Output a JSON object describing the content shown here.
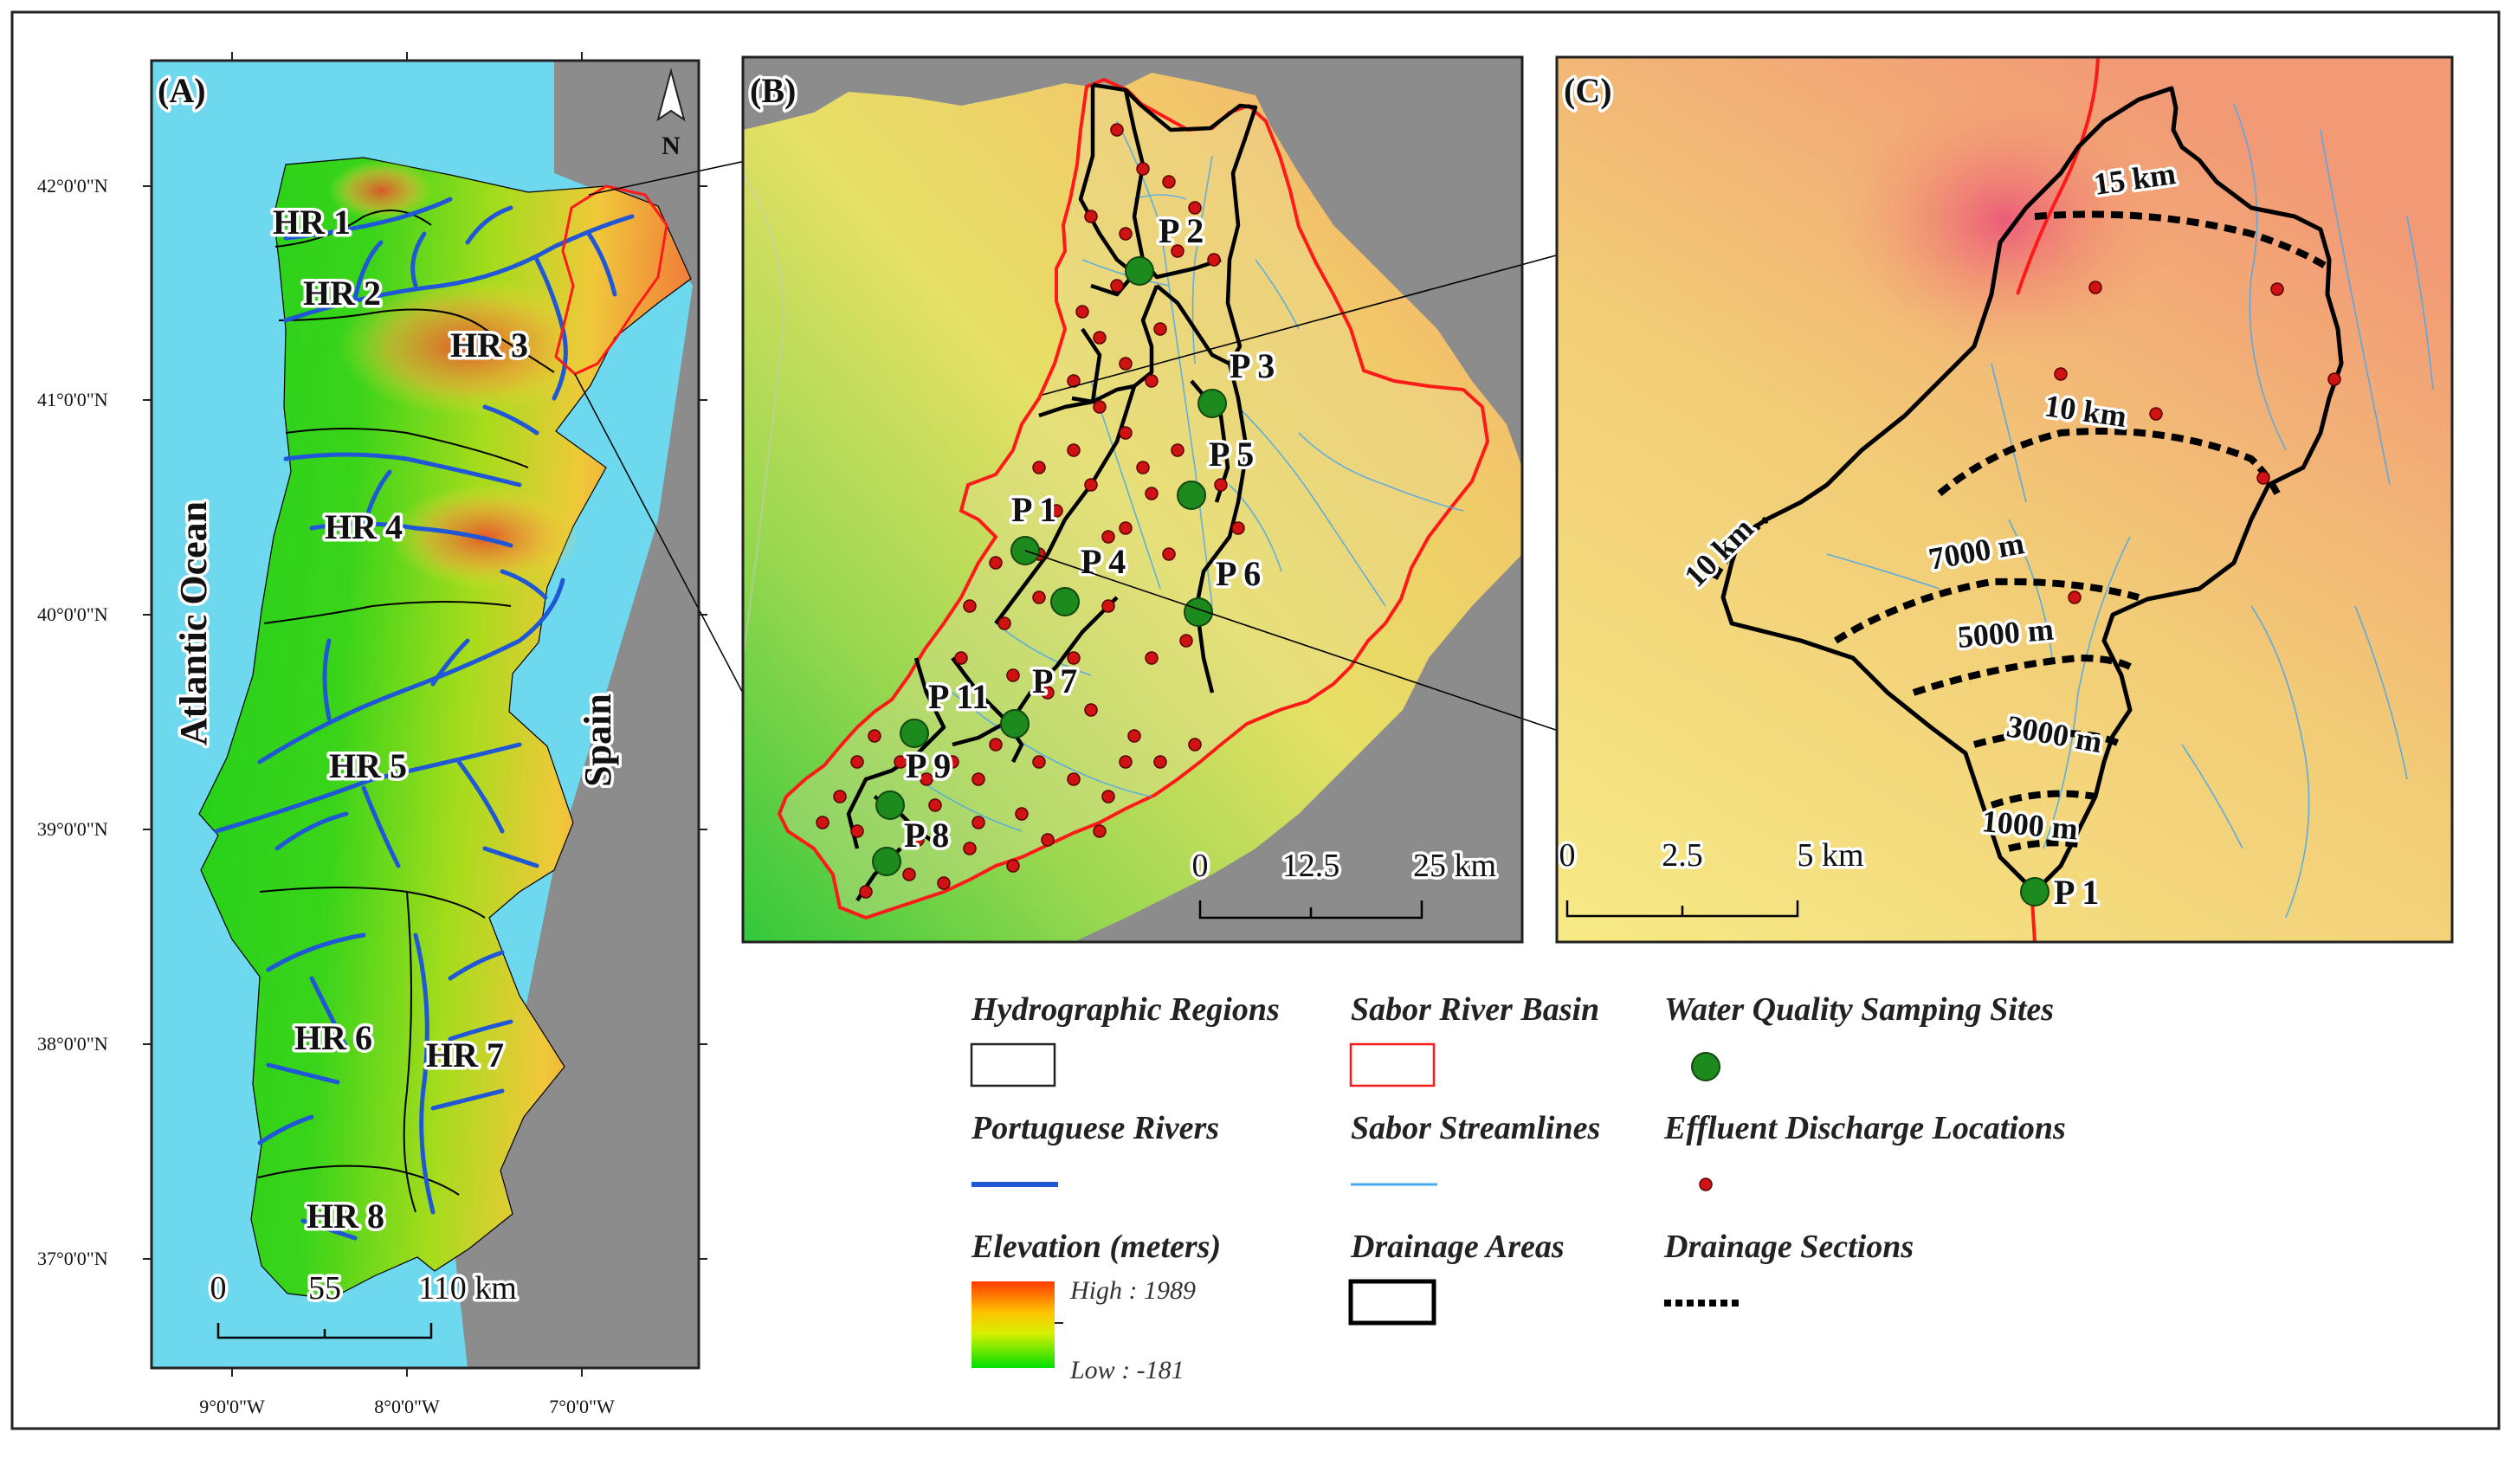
{
  "panels": {
    "a": {
      "label": "(A)",
      "ocean_label": "Atlantic Ocean",
      "country_label": "Spain",
      "regions": [
        "HR 1",
        "HR 2",
        "HR 3",
        "HR 4",
        "HR 5",
        "HR 6",
        "HR 7",
        "HR 8"
      ],
      "lat_ticks": [
        "42°0'0\"N",
        "41°0'0\"N",
        "40°0'0\"N",
        "39°0'0\"N",
        "38°0'0\"N",
        "37°0'0\"N"
      ],
      "lon_ticks": [
        "9°0'0\"W",
        "8°0'0\"W",
        "7°0'0\"W"
      ],
      "scale": {
        "ticks": [
          "0",
          "55",
          "110 km"
        ]
      },
      "north": "N"
    },
    "b": {
      "label": "(B)",
      "sites": [
        "P 1",
        "P 2",
        "P 3",
        "P 4",
        "P 5",
        "P 6",
        "P 7",
        "P 8",
        "P 9",
        "P 11"
      ],
      "scale": {
        "ticks": [
          "0",
          "12.5",
          "25 km"
        ]
      }
    },
    "c": {
      "label": "(C)",
      "sections": [
        "15 km",
        "10 km",
        "10 km",
        "7000 m",
        "5000 m",
        "3000 m",
        "1000 m"
      ],
      "site": "P 1",
      "scale": {
        "ticks": [
          "0",
          "2.5",
          "5 km"
        ]
      }
    }
  },
  "legend": {
    "hydrographic_regions": "Hydrographic Regions",
    "sabor_basin": "Sabor River Basin",
    "sampling_sites": "Water Quality Samping Sites",
    "portuguese_rivers": "Portuguese Rivers",
    "sabor_streamlines": "Sabor Streamlines",
    "effluent_locations": "Effluent Discharge Locations",
    "elevation_title": "Elevation (meters)",
    "elevation_high": "High : 1989",
    "elevation_low": "Low : -181",
    "drainage_areas": "Drainage Areas",
    "drainage_sections": "Drainage Sections"
  },
  "colors": {
    "ocean": "#6ed8ee",
    "spain": "#8c8c8c",
    "river": "#1f57d6",
    "basin": "#ff1a1a",
    "site": "#1d8a1d",
    "effluent": "#d11212",
    "stream": "#4aa8ee"
  }
}
